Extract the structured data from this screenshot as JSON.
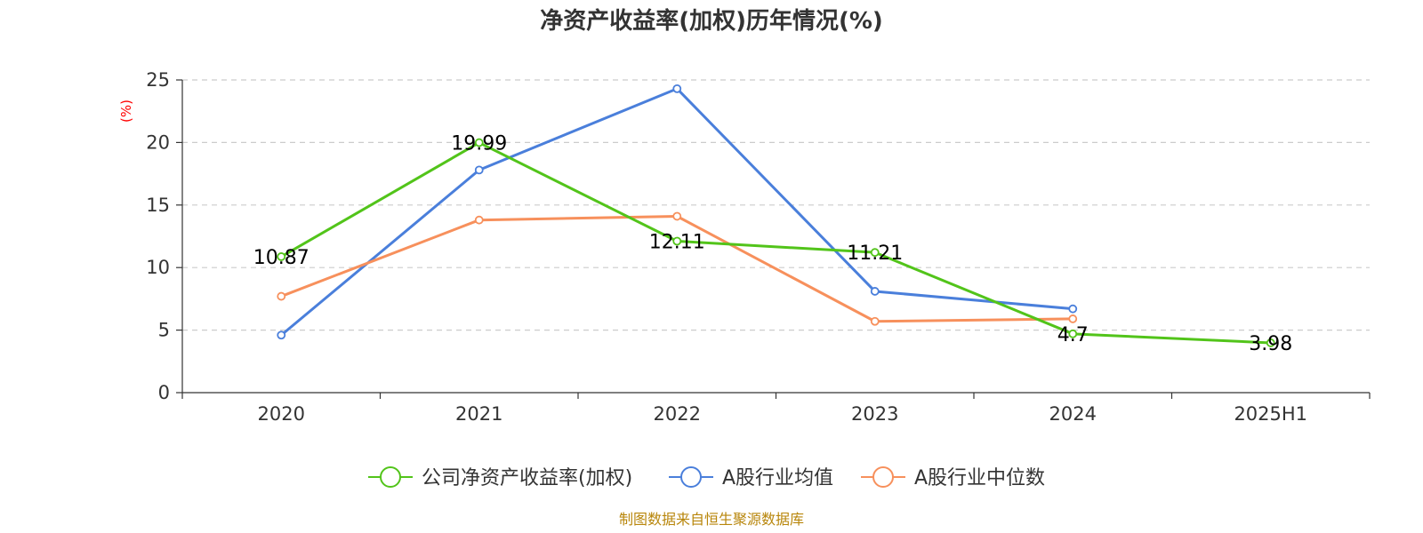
{
  "chart_data": {
    "type": "line",
    "title": "净资产收益率(加权)历年情况(%)",
    "ylabel": "(%)",
    "xlabel": "",
    "categories": [
      "2020",
      "2021",
      "2022",
      "2023",
      "2024",
      "2025H1"
    ],
    "ylim": [
      0,
      25
    ],
    "yticks": [
      0,
      5,
      10,
      15,
      20,
      25
    ],
    "grid": true,
    "legend_position": "bottom-center",
    "series": [
      {
        "name": "公司净资产收益率(加权)",
        "color": "#52c41a",
        "values": [
          10.87,
          19.99,
          12.11,
          11.21,
          4.7,
          3.98
        ],
        "labels": [
          "10.87",
          "19.99",
          "12.11",
          "11.21",
          "4.7",
          "3.98"
        ]
      },
      {
        "name": "A股行业均值",
        "color": "#4a7fdb",
        "values": [
          4.6,
          17.8,
          24.3,
          8.1,
          6.7,
          null
        ]
      },
      {
        "name": "A股行业中位数",
        "color": "#f7905c",
        "values": [
          7.7,
          13.8,
          14.1,
          5.7,
          5.9,
          null
        ]
      }
    ],
    "source": "制图数据来自恒生聚源数据库",
    "source_color": "#b8860b",
    "ylabel_color": "#ff0000"
  }
}
